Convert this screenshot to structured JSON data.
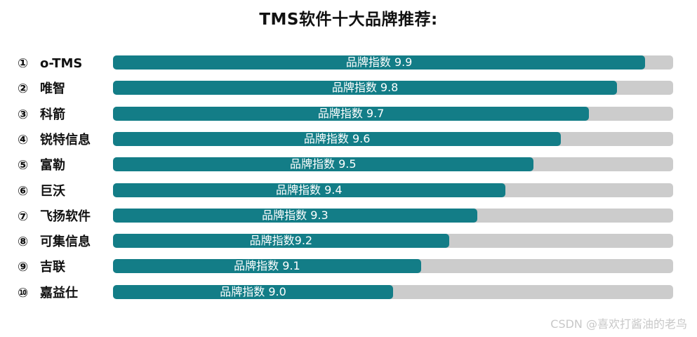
{
  "title": "TMS软件十大品牌推荐:",
  "watermark": "CSDN @喜欢打酱油的老鸟",
  "colors": {
    "bar": "#137d87",
    "track": "#cccccc",
    "label": "#ffffff"
  },
  "chart_data": {
    "type": "bar",
    "orientation": "horizontal",
    "title": "TMS软件十大品牌推荐:",
    "categories": [
      "o-TMS",
      "唯智",
      "科箭",
      "锐特信息",
      "富勒",
      "巨沃",
      "飞扬软件",
      "可集信息",
      "吉联",
      "嘉益仕"
    ],
    "ranks": [
      "①",
      "②",
      "③",
      "④",
      "⑤",
      "⑥",
      "⑦",
      "⑧",
      "⑨",
      "⑩"
    ],
    "values": [
      9.9,
      9.8,
      9.7,
      9.6,
      9.5,
      9.4,
      9.3,
      9.2,
      9.1,
      9.0
    ],
    "data_labels": [
      "品牌指数 9.9",
      "品牌指数 9.8",
      "品牌指数 9.7",
      "品牌指数 9.6",
      "品牌指数 9.5",
      "品牌指数 9.4",
      "品牌指数 9.3",
      "品牌指数9.2",
      "品牌指数 9.1",
      "品牌指数 9.0"
    ],
    "xlim": [
      8.0,
      10.0
    ],
    "grid": false,
    "legend": "none"
  }
}
